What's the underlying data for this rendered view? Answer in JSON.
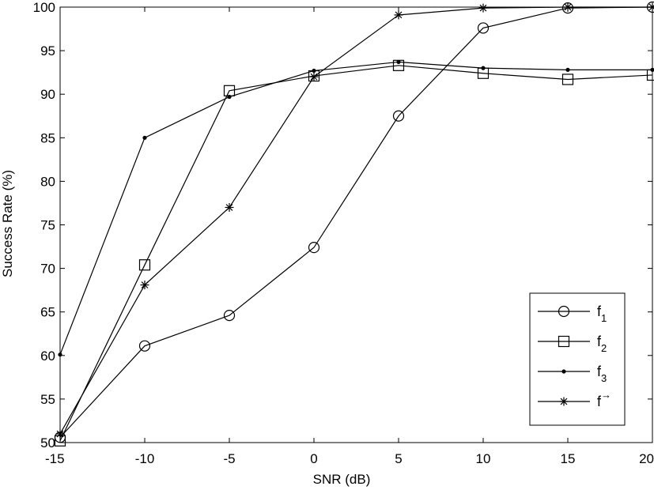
{
  "chart_data": {
    "type": "line",
    "xlabel": "SNR (dB)",
    "ylabel": "Success Rate (%)",
    "xlim": [
      -15,
      20
    ],
    "ylim": [
      50,
      100
    ],
    "xticks": [
      -15,
      -10,
      -5,
      0,
      5,
      10,
      15,
      20
    ],
    "yticks": [
      50,
      55,
      60,
      65,
      70,
      75,
      80,
      85,
      90,
      95,
      100
    ],
    "grid": false,
    "legend_position": "bottom-right",
    "x": [
      -15,
      -10,
      -5,
      0,
      5,
      10,
      15,
      20
    ],
    "series": [
      {
        "name": "f",
        "sub": "1",
        "marker": "circle",
        "values": [
          50.6,
          61.1,
          64.6,
          72.4,
          87.5,
          97.6,
          99.9,
          100
        ]
      },
      {
        "name": "f",
        "sub": "2",
        "marker": "square",
        "values": [
          50.2,
          70.4,
          90.4,
          92.1,
          93.3,
          92.4,
          91.7,
          92.2
        ]
      },
      {
        "name": "f",
        "sub": "3",
        "marker": "dot",
        "values": [
          60.1,
          85.0,
          89.7,
          92.7,
          93.7,
          93.0,
          92.8,
          92.8
        ]
      },
      {
        "name": "f",
        "sub": "→",
        "marker": "star",
        "values": [
          51.0,
          68.1,
          77.0,
          92.0,
          99.1,
          99.9,
          100,
          100
        ]
      }
    ],
    "colors": {
      "line": "#000000",
      "background": "#ffffff"
    }
  }
}
